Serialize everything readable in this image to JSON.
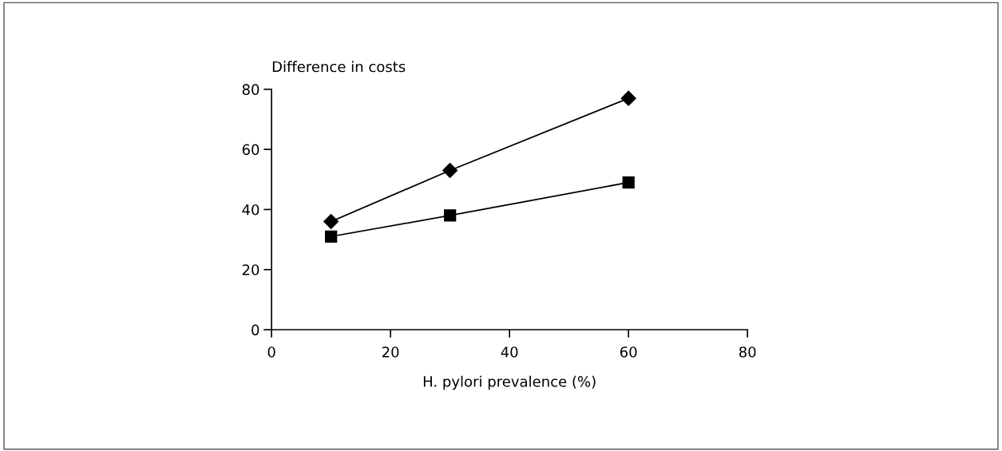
{
  "chart_data": {
    "type": "line",
    "ylabel": "Difference in costs",
    "xlabel": "H. pylori prevalence (%)",
    "x": [
      10,
      30,
      60
    ],
    "series": [
      {
        "color": "#000000",
        "values": [
          36,
          53,
          77
        ],
        "marker": "diamond"
      },
      {
        "color": "#000000",
        "values": [
          31,
          38,
          49
        ],
        "marker": "square"
      }
    ],
    "xlim": [
      0,
      80
    ],
    "xticks": [
      0,
      20,
      40,
      60,
      80
    ],
    "ylim": [
      0,
      80
    ],
    "yticks": [
      0,
      20,
      40,
      60,
      80
    ],
    "grid": false,
    "legend": false,
    "line_style": "solid"
  }
}
